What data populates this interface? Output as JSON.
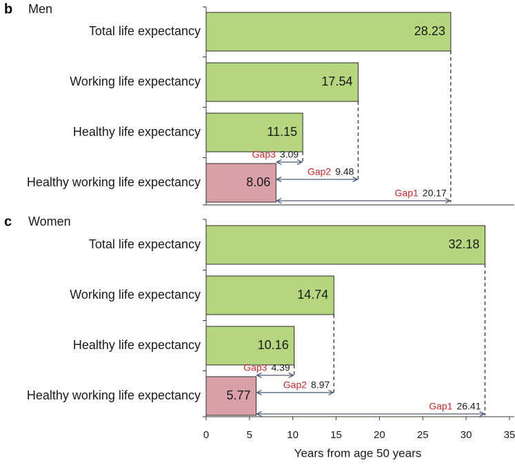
{
  "colors": {
    "green_bar": "#b5d57f",
    "pink_bar": "#d9a0a8",
    "bar_stroke": "#2b2b2b",
    "arrow": "#4a5a78",
    "gap_label": "#c0292b"
  },
  "chart_data": [
    {
      "type": "bar",
      "orientation": "horizontal",
      "panel": "b",
      "title": "Men",
      "categories": [
        "Total life expectancy",
        "Working life expectancy",
        "Healthy life expectancy",
        "Healthy working life expectancy"
      ],
      "values": [
        28.23,
        17.54,
        11.15,
        8.06
      ],
      "value_labels": [
        "28.23",
        "17.54",
        "11.15",
        "8.06"
      ],
      "bar_colors": [
        "green",
        "green",
        "green",
        "pink"
      ],
      "gaps": [
        {
          "name": "Gap3",
          "value": "3.09",
          "from": 8.06,
          "to": 11.15
        },
        {
          "name": "Gap2",
          "value": "9.48",
          "from": 8.06,
          "to": 17.54
        },
        {
          "name": "Gap1",
          "value": "20.17",
          "from": 8.06,
          "to": 28.23
        }
      ],
      "xlim": [
        0,
        35
      ]
    },
    {
      "type": "bar",
      "orientation": "horizontal",
      "panel": "c",
      "title": "Women",
      "categories": [
        "Total life expectancy",
        "Working life expectancy",
        "Healthy life expectancy",
        "Healthy working life expectancy"
      ],
      "values": [
        32.18,
        14.74,
        10.16,
        5.77
      ],
      "value_labels": [
        "32.18",
        "14.74",
        "10.16",
        "5.77"
      ],
      "bar_colors": [
        "green",
        "green",
        "green",
        "pink"
      ],
      "gaps": [
        {
          "name": "Gap3",
          "value": "4.39",
          "from": 5.77,
          "to": 10.16
        },
        {
          "name": "Gap2",
          "value": "8.97",
          "from": 5.77,
          "to": 14.74
        },
        {
          "name": "Gap1",
          "value": "26.41",
          "from": 5.77,
          "to": 32.18
        }
      ],
      "xlim": [
        0,
        35
      ],
      "xticks": [
        "0",
        "5",
        "10",
        "15",
        "20",
        "25",
        "30",
        "35"
      ],
      "xlabel": "Years from age 50 years"
    }
  ]
}
